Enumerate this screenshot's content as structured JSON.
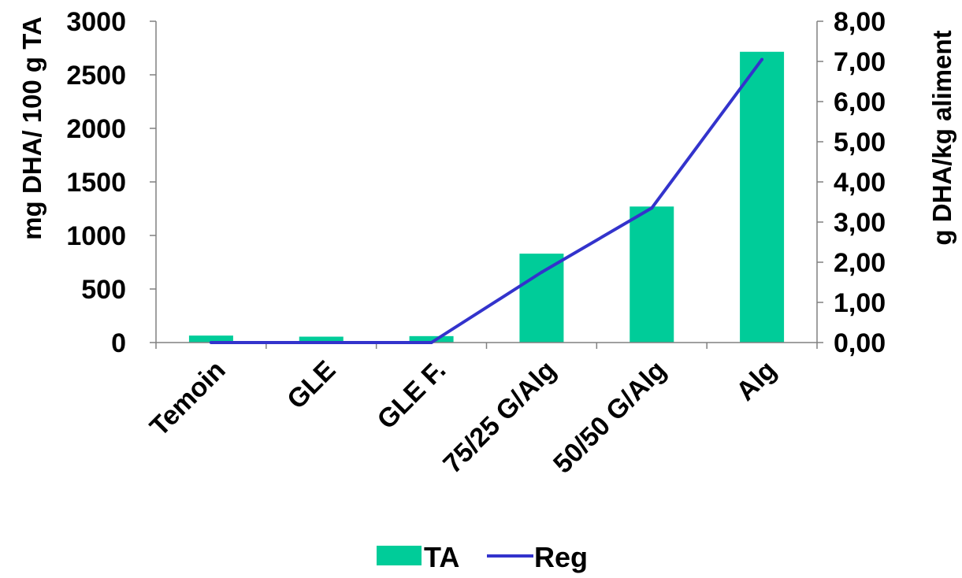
{
  "chart_data": {
    "type": "bar",
    "categories": [
      "Temoin",
      "GLE",
      "GLE F.",
      "75/25 G/Alg",
      "50/50 G/Alg",
      "Alg"
    ],
    "series": [
      {
        "name": "TA",
        "type": "bar",
        "axis": "left",
        "color": "#00cc99",
        "values": [
          65,
          55,
          60,
          830,
          1270,
          2715
        ]
      },
      {
        "name": "Reg",
        "type": "line",
        "axis": "right",
        "color": "#3333cc",
        "values": [
          0.0,
          0.0,
          0.0,
          1.75,
          3.35,
          7.05
        ]
      }
    ],
    "ylabel": "mg DHA/ 100 g TA",
    "y2label": "g DHA/kg aliment",
    "xlabel": "",
    "ylim": [
      0,
      3000
    ],
    "y2lim": [
      0,
      8
    ],
    "yticks": [
      "0",
      "500",
      "1000",
      "1500",
      "2000",
      "2500",
      "3000"
    ],
    "y2ticks": [
      "0,00",
      "1,00",
      "2,00",
      "3,00",
      "4,00",
      "5,00",
      "6,00",
      "7,00",
      "8,00"
    ],
    "grid": false,
    "legend_position": "bottom"
  }
}
